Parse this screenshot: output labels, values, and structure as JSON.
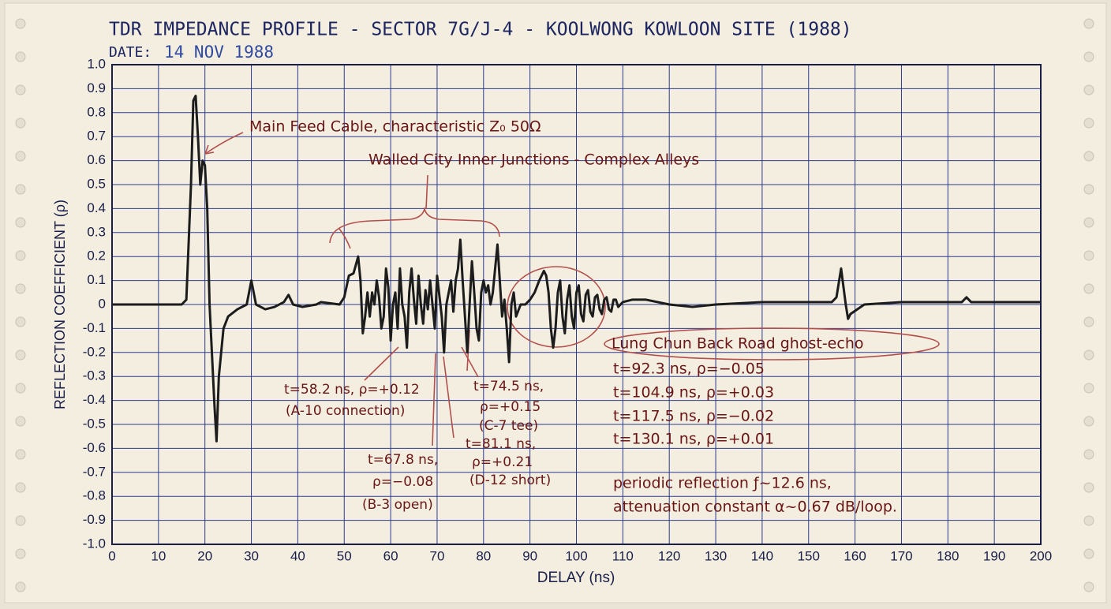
{
  "chart_data": {
    "type": "line",
    "title": "TDR IMPEDANCE PROFILE - SECTOR 7G/J-4 - KOOLWONG KOWLOON SITE (1988)",
    "date_label": "DATE:",
    "date": "14 NOV 1988",
    "x_label": "DELAY (ns)",
    "y_label": "REFLECTION COEFFICIENT (ρ)",
    "xlim": [
      0,
      200
    ],
    "ylim": [
      -1,
      1
    ],
    "xticks": [
      0,
      10,
      20,
      30,
      40,
      50,
      60,
      70,
      80,
      90,
      100,
      110,
      120,
      130,
      140,
      150,
      160,
      170,
      180,
      190,
      200
    ],
    "yticks": [
      {
        "value": 1,
        "label": "1.0"
      },
      0.9,
      0.8,
      0.7,
      0.6,
      0.5,
      0.4,
      0.3,
      0.2,
      0.1,
      0,
      -0.1,
      -0.2,
      -0.3,
      -0.4,
      -0.5,
      -0.6,
      -0.7,
      -0.8,
      -0.9,
      {
        "value": -1,
        "label": "-1.0"
      }
    ],
    "grid": true,
    "color": "#1c1c1c",
    "x": [
      0,
      5,
      10,
      15,
      16,
      17,
      17.5,
      18,
      18.5,
      19,
      19.5,
      20,
      20.5,
      21,
      22,
      22.5,
      23,
      24,
      25,
      27,
      29,
      30,
      31,
      33,
      35,
      37,
      38,
      39,
      41,
      44,
      45,
      49,
      50,
      51,
      52,
      53,
      53.5,
      54,
      54.5,
      55,
      55.5,
      56,
      56.5,
      57,
      57.5,
      58,
      58.5,
      59,
      59.5,
      60,
      60.5,
      61,
      61.5,
      62,
      62.5,
      63,
      63.5,
      64,
      64.5,
      65,
      65.5,
      66,
      66.5,
      67,
      67.5,
      68,
      68.5,
      69,
      69.5,
      70,
      71,
      71.5,
      72,
      73,
      73.5,
      74,
      74.5,
      75,
      75.5,
      76,
      76.5,
      77,
      77.5,
      78,
      78.5,
      79,
      79.5,
      80,
      80.5,
      81,
      81.5,
      82,
      83,
      83.5,
      84,
      84.5,
      85,
      85.5,
      86,
      86.5,
      87,
      88,
      89,
      90,
      91,
      92,
      93,
      93.5,
      94,
      94.5,
      95,
      95.5,
      96,
      96.5,
      97,
      97.5,
      98,
      98.5,
      99,
      99.5,
      100,
      100.5,
      101,
      101.5,
      102,
      102.5,
      103,
      103.5,
      104,
      104.5,
      105,
      105.5,
      106,
      106.5,
      107,
      107.5,
      108,
      108.5,
      109,
      110,
      112,
      115,
      120,
      125,
      130,
      140,
      150,
      155,
      156,
      157,
      158,
      158.5,
      159,
      162,
      170,
      180,
      183,
      184,
      185,
      200
    ],
    "values": [
      0,
      0,
      0,
      0,
      0.02,
      0.5,
      0.85,
      0.87,
      0.7,
      0.5,
      0.6,
      0.58,
      0.4,
      0,
      -0.4,
      -0.57,
      -0.3,
      -0.1,
      -0.05,
      -0.02,
      0,
      0.1,
      0,
      -0.02,
      -0.01,
      0.01,
      0.04,
      0,
      -0.01,
      0,
      0.01,
      0,
      0.03,
      0.12,
      0.13,
      0.2,
      0.1,
      -0.12,
      -0.05,
      0.05,
      -0.05,
      0.05,
      0,
      0.1,
      0.03,
      -0.1,
      -0.05,
      0.15,
      0.07,
      -0.15,
      0,
      0.05,
      -0.1,
      0.15,
      0,
      -0.05,
      -0.18,
      0.05,
      0.15,
      0.02,
      -0.08,
      0.12,
      0,
      -0.08,
      0.06,
      -0.02,
      0.1,
      0,
      -0.1,
      0.12,
      -0.05,
      -0.2,
      0,
      0.1,
      -0.03,
      0.1,
      0.15,
      0.27,
      0.1,
      -0.05,
      -0.2,
      0,
      0.18,
      0.05,
      -0.1,
      -0.15,
      0.05,
      0.1,
      0.05,
      0.08,
      0,
      0.05,
      0.25,
      0.1,
      -0.05,
      0.02,
      -0.1,
      -0.24,
      0,
      0.05,
      -0.05,
      0,
      0,
      0.02,
      0.05,
      0.1,
      0.14,
      0.12,
      0.05,
      -0.1,
      -0.18,
      -0.1,
      0.05,
      0.1,
      -0.05,
      -0.12,
      0.02,
      0.08,
      -0.05,
      -0.1,
      0.05,
      0.08,
      -0.04,
      -0.07,
      0.04,
      0.06,
      -0.03,
      -0.05,
      0.03,
      0.04,
      -0.02,
      -0.04,
      0.02,
      0.03,
      -0.02,
      -0.03,
      0.02,
      0.02,
      -0.01,
      0.01,
      0.02,
      0.02,
      0,
      -0.01,
      0,
      0.01,
      0.01,
      0.01,
      0.03,
      0.15,
      0,
      -0.06,
      -0.04,
      0,
      0.01,
      0.01,
      0.01,
      0.03,
      0.01,
      0.01
    ],
    "annotations": [
      "Main Feed Cable, characteristic Z₀ 50Ω",
      "Walled City Inner Junctions - Complex Alleys",
      "t=58.2 ns, ρ=+0.12",
      "(A-10 connection)",
      "t=67.8 ns,",
      "ρ=−0.08",
      "(B-3 open)",
      "t=74.5 ns,",
      "ρ=+0.15",
      "(C-7 tee)",
      "t=81.1 ns,",
      "ρ=+0.21",
      "(D-12 short)",
      "Lung Chun Back Road ghost-echo",
      "t=92.3 ns, ρ=−0.05",
      "t=104.9 ns, ρ=+0.03",
      "t=117.5 ns, ρ=−0.02",
      "t=130.1 ns, ρ=+0.01",
      "periodic reflection ƒ~12.6 ns,",
      "attenuation constant α~0.67 dB/loop."
    ]
  }
}
